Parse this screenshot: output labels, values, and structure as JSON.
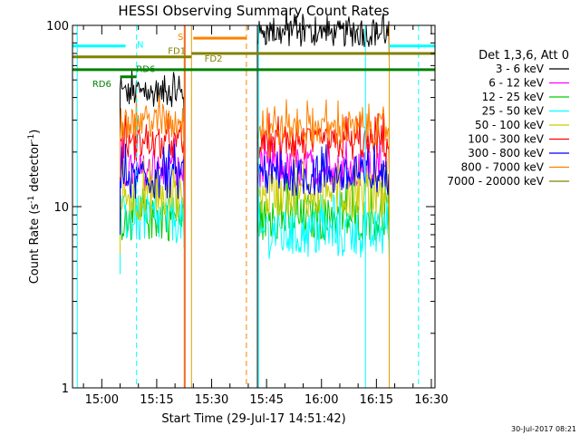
{
  "chart_data": {
    "type": "line",
    "title": "HESSI Observing Summary Count Rates",
    "xlabel": "Start Time (29-Jul-17 14:51:42)",
    "ylabel_main": "Count Rate (s",
    "ylabel_sup": "-1",
    "ylabel_tail": " detector",
    "ylabel_sup2": "-1",
    "ylabel_end": ")",
    "footer": "30-Jul-2017 08:21",
    "yscale": "log",
    "ylim": [
      1,
      100
    ],
    "xlim_minutes": [
      -8,
      91
    ],
    "x_ticks": [
      {
        "label": "15:00",
        "min": 0
      },
      {
        "label": "15:15",
        "min": 15
      },
      {
        "label": "15:30",
        "min": 30
      },
      {
        "label": "15:45",
        "min": 45
      },
      {
        "label": "16:00",
        "min": 60
      },
      {
        "label": "16:15",
        "min": 75
      },
      {
        "label": "16:30",
        "min": 90
      }
    ],
    "y_ticks": [
      {
        "label": "1",
        "value": 1
      },
      {
        "label": "10",
        "value": 10
      },
      {
        "label": "100",
        "value": 100
      }
    ],
    "legend_header": "Det 1,3,6, Att 0",
    "series": [
      {
        "name": "3 - 6 keV",
        "color": "#000000",
        "seg1": 42,
        "seg2": 90,
        "noise": 0.05
      },
      {
        "name": "6 - 12 keV",
        "color": "#ff00ff",
        "seg1": 15.5,
        "seg2": 16,
        "noise": 0.07
      },
      {
        "name": "12 - 25 keV",
        "color": "#00cc00",
        "seg1": 8.5,
        "seg2": 8.5,
        "noise": 0.08
      },
      {
        "name": "25 - 50 keV",
        "color": "#00ffff",
        "seg1": 8.5,
        "seg2": 7.0,
        "noise": 0.09
      },
      {
        "name": "50 - 100 keV",
        "color": "#cccc00",
        "seg1": 11,
        "seg2": 11.5,
        "noise": 0.08
      },
      {
        "name": "100 - 300 keV",
        "color": "#ff0000",
        "seg1": 22,
        "seg2": 22,
        "noise": 0.06
      },
      {
        "name": "300 - 800 keV",
        "color": "#0000ff",
        "seg1": 14,
        "seg2": 14.5,
        "noise": 0.07
      },
      {
        "name": "800 - 7000 keV",
        "color": "#ff8000",
        "seg1": 29,
        "seg2": 26.5,
        "noise": 0.06
      },
      {
        "name": "7000 - 20000 keV",
        "color": "#808000",
        "seg1": null,
        "seg2": null,
        "noise": 0
      }
    ],
    "data_segments": [
      {
        "start_min": 5,
        "end_min": 22.5
      },
      {
        "start_min": 42.5,
        "end_min": 78.5
      }
    ],
    "vertical_lines": [
      {
        "min": -6.7,
        "color": "#00ffff",
        "style": "solid"
      },
      {
        "min": 9.5,
        "color": "#00ffff",
        "style": "dashed"
      },
      {
        "min": 22.7,
        "color": "#ff0000",
        "style": "solid"
      },
      {
        "min": 22.5,
        "color": "#e0a000",
        "style": "solid"
      },
      {
        "min": 24.5,
        "color": "#e0a000",
        "style": "solid"
      },
      {
        "min": 39.5,
        "color": "#ff8000",
        "style": "dashed"
      },
      {
        "min": 42.8,
        "color": "#00ffff",
        "style": "solid"
      },
      {
        "min": 42.5,
        "color": "#000000",
        "style": "solid"
      },
      {
        "min": 72.0,
        "color": "#00ffff",
        "style": "solid"
      },
      {
        "min": 78.5,
        "color": "#e0a000",
        "style": "solid"
      },
      {
        "min": 86.5,
        "color": "#00ffff",
        "style": "dashed"
      }
    ],
    "flag_bars": [
      {
        "label": "N",
        "color": "#00ffff",
        "y": 77,
        "x0": -8,
        "x1": 6.5,
        "label_min": 10.5,
        "label_y": 79,
        "x0b": 78.5,
        "x1b": 91
      },
      {
        "label": "S",
        "color": "#ff8000",
        "y": 85,
        "x0": 25,
        "x1": 39.5,
        "label_min": 21.5,
        "label_y": 87
      },
      {
        "label": "FD1",
        "color": "#808000",
        "y": 67,
        "x0": -8,
        "x1": 24.5,
        "label_min": 20.5,
        "label_y": 73
      },
      {
        "label": "FD2",
        "color": "#808000",
        "y": 70,
        "x0": 24.5,
        "x1": 91,
        "label_min": 30.5,
        "label_y": 66
      },
      {
        "label": "RD6",
        "color": "#008000",
        "y": 57,
        "x0": -8,
        "x1": 91,
        "label_min": 12.0,
        "label_y": 58
      },
      {
        "label": "RD6",
        "color": "#008000",
        "y": 52,
        "x0": 5,
        "x1": 9.5,
        "label_min": 0,
        "label_y": 48
      }
    ]
  }
}
